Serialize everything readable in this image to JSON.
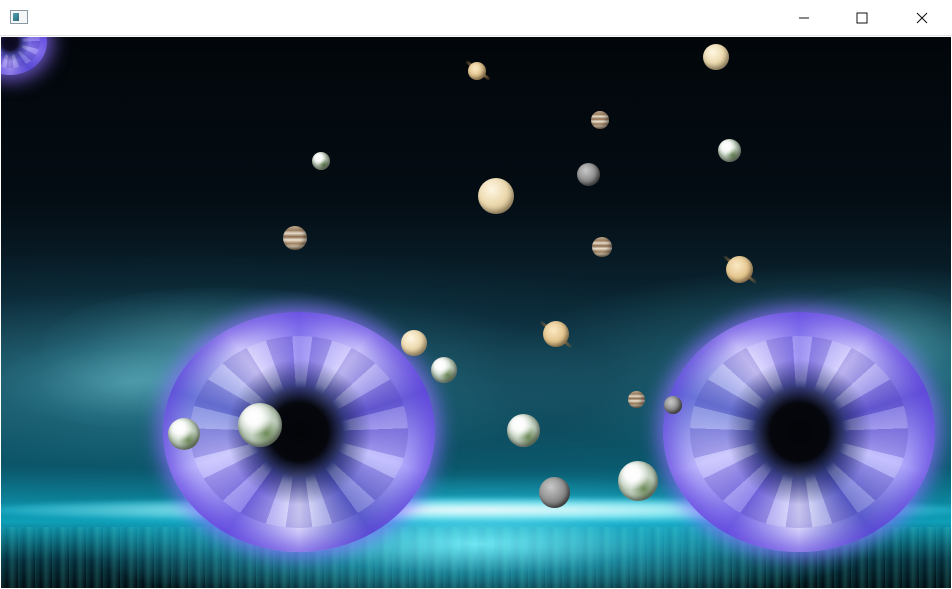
{
  "window": {
    "title": "",
    "icon": "app-window-icon",
    "controls": [
      "minimize-icon",
      "maximize-icon",
      "close-icon"
    ]
  },
  "scene": {
    "sky_color": "#040d14",
    "horizon_glow_color": "#aafaff",
    "portal_color": "#8a7cf0",
    "portals": [
      "portal-left",
      "portal-right",
      "portal-top-left-partial"
    ],
    "planets": [
      "saturn",
      "venus",
      "jupiter",
      "earth",
      "jupiter",
      "mercury",
      "venus",
      "earth",
      "jupiter",
      "jupiter",
      "saturn",
      "saturn",
      "venus",
      "earth",
      "earth",
      "earth",
      "jupiter",
      "mercury",
      "earth",
      "mercury",
      "earth"
    ]
  }
}
